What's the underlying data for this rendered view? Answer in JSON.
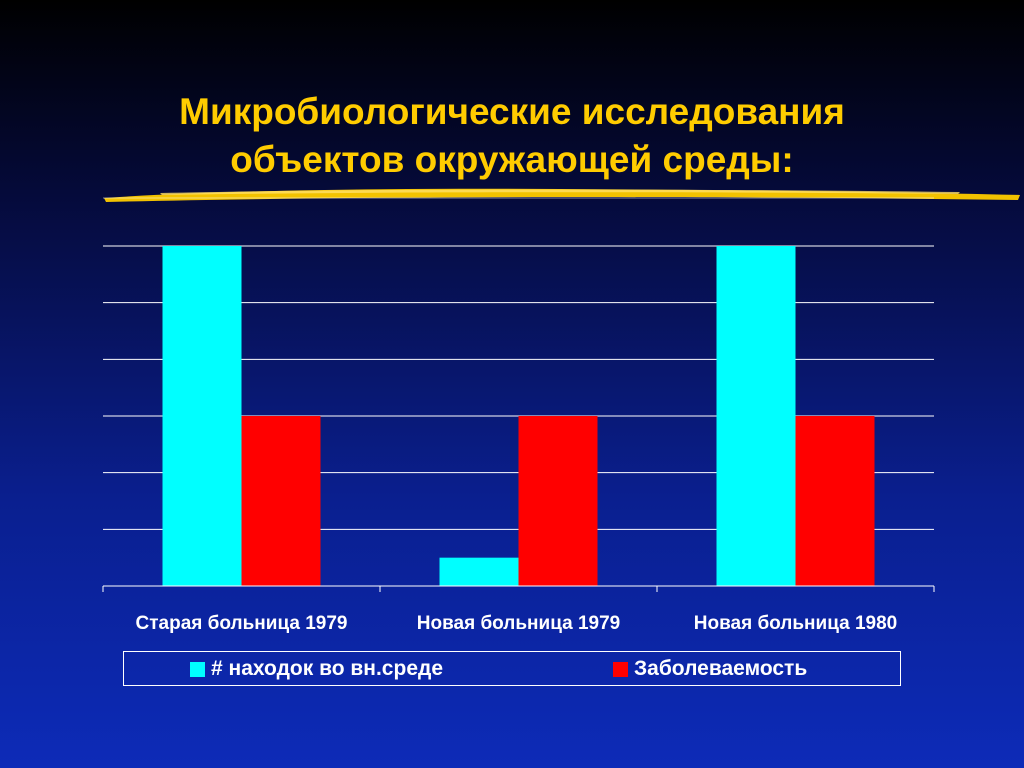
{
  "title": {
    "line1": "Микробиологические исследования",
    "line2": "объектов окружающей среды:"
  },
  "colors": {
    "title": "#ffcc00",
    "brush": "#f2c200",
    "grid": "#ffffff",
    "series_findings": "#00ffff",
    "series_incidence": "#ff0000"
  },
  "chart_data": {
    "type": "bar",
    "categories": [
      "Старая больница 1979",
      "Новая больница 1979",
      "Новая больница 1980"
    ],
    "series": [
      {
        "name": "# находок во вн.среде",
        "values": [
          6,
          0.5,
          6
        ],
        "color": "#00ffff"
      },
      {
        "name": "Заболеваемость",
        "values": [
          3,
          3,
          3
        ],
        "color": "#ff0000"
      }
    ],
    "ylim": [
      0,
      6
    ],
    "grid": true,
    "legend_position": "bottom",
    "xlabel": "",
    "ylabel": ""
  }
}
